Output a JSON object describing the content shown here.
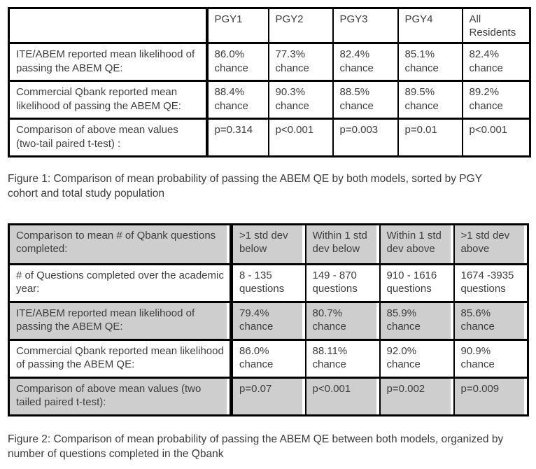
{
  "page": {
    "background_color": "#ffffff",
    "text_color": "#3d3d3d",
    "border_color": "#000000",
    "shaded_row_color": "#cecece"
  },
  "figure1": {
    "caption": "Figure 1: Comparison of mean probability of passing the ABEM QE by both models, sorted by PGY cohort and total study population",
    "table": {
      "header": [
        "",
        "PGY1",
        "PGY2",
        "PGY3",
        "PGY4",
        "All Residents"
      ],
      "rows": [
        {
          "label": "ITE/ABEM reported mean likelihood of passing the ABEM QE:",
          "values": [
            "86.0% chance",
            "77.3% chance",
            "82.4% chance",
            "85.1% chance",
            "82.4% chance"
          ]
        },
        {
          "label": "Commercial Qbank reported mean likelihood of passing the ABEM QE:",
          "values": [
            "88.4% chance",
            "90.3% chance",
            "88.5% chance",
            "89.5% chance",
            "89.2% chance"
          ]
        },
        {
          "label": "Comparison of above mean values (two-tail paired t-test) :",
          "values": [
            "p=0.314",
            "p<0.001",
            "p=0.003",
            "p=0.01",
            "p<0.001"
          ]
        }
      ]
    }
  },
  "figure2": {
    "caption": "Figure 2: Comparison of mean probability of passing the ABEM QE between both models, organized by number of questions completed in the Qbank",
    "table": {
      "rows": [
        {
          "label": "Comparison to mean # of Qbank questions completed:",
          "values": [
            ">1 std dev below",
            "Within 1 std dev below",
            "Within 1 std dev above",
            ">1 std dev above"
          ],
          "shaded": true
        },
        {
          "label": "# of Questions completed over the academic year:",
          "values": [
            "8 - 135 questions",
            "149 - 870 questions",
            "910 - 1616 questions",
            "1674 -3935 questions"
          ],
          "shaded": false
        },
        {
          "label": "ITE/ABEM reported mean likelihood of passing the ABEM QE:",
          "values": [
            "79.4% chance",
            "80.7% chance",
            "85.9% chance",
            "85.6% chance"
          ],
          "shaded": true
        },
        {
          "label": "Commercial Qbank reported mean likelihood of passing the ABEM QE:",
          "values": [
            "86.0% chance",
            "88.11% chance",
            "92.0% chance",
            "90.9% chance"
          ],
          "shaded": false
        },
        {
          "label": "Comparison of above mean values (two tailed paired t-test):",
          "values": [
            "p=0.07",
            "p<0.001",
            "p=0.002",
            "p=0.009"
          ],
          "shaded": true
        }
      ]
    }
  }
}
